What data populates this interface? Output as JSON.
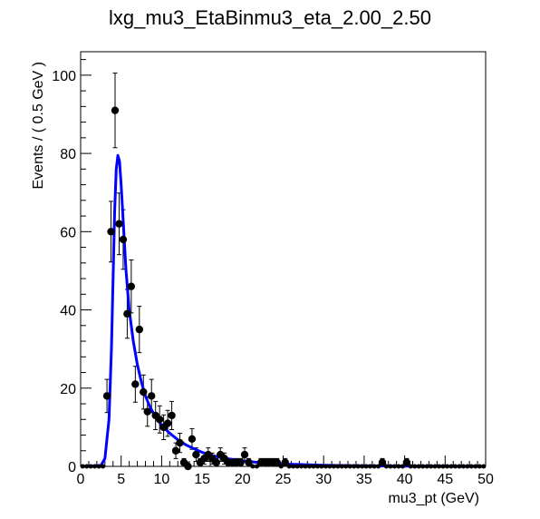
{
  "chart_data": {
    "type": "scatter",
    "title": "lxg_mu3_EtaBinmu3_eta_2.00_2.50",
    "xlabel": "mu3_pt (GeV)",
    "ylabel": "Events / ( 0.5 GeV )",
    "xlim": [
      0,
      50
    ],
    "ylim": [
      0,
      106
    ],
    "x_ticks": [
      "0",
      "5",
      "10",
      "15",
      "20",
      "25",
      "30",
      "35",
      "40",
      "45",
      "50"
    ],
    "y_ticks": [
      "0",
      "20",
      "40",
      "60",
      "80",
      "100"
    ],
    "grid": false,
    "legend": "none",
    "series": [
      {
        "kind": "data",
        "marker": "filled-circle",
        "color": "#000000",
        "error_bars": "poisson",
        "x": [
          3.25,
          3.75,
          4.25,
          4.75,
          5.25,
          5.75,
          6.25,
          6.75,
          7.25,
          7.75,
          8.25,
          8.75,
          9.25,
          9.75,
          10.25,
          10.75,
          11.25,
          11.75,
          12.25,
          12.75,
          13.25,
          13.75,
          14.25,
          14.75,
          15.25,
          15.75,
          16.25,
          16.75,
          17.25,
          17.75,
          18.25,
          18.75,
          19.25,
          19.75,
          20.25,
          20.75,
          22.25,
          22.75,
          23.25,
          23.75,
          24.25,
          25.25,
          37.25,
          40.25
        ],
        "y": [
          18,
          60,
          91,
          62,
          58,
          39,
          46,
          21,
          35,
          19,
          14,
          18,
          13,
          12,
          10,
          11,
          13,
          4,
          6,
          1,
          0,
          7,
          3,
          1,
          2,
          3,
          2,
          1,
          3,
          2,
          1,
          1,
          1,
          1,
          3,
          1,
          1,
          1,
          1,
          1,
          1,
          1,
          1,
          1
        ]
      },
      {
        "kind": "fit",
        "color": "#0000ff",
        "x": [
          0,
          2.5,
          3.0,
          3.5,
          3.8,
          4.0,
          4.2,
          4.4,
          4.6,
          4.8,
          5.0,
          5.3,
          5.6,
          6.0,
          6.5,
          7.0,
          7.5,
          8.0,
          8.5,
          9.0,
          9.5,
          10,
          11,
          12,
          13,
          14,
          15,
          16,
          17,
          18,
          20,
          22,
          25,
          30,
          35,
          40,
          45,
          50
        ],
        "y": [
          0,
          0.2,
          2,
          12,
          30,
          48,
          65,
          76,
          79.5,
          78,
          72,
          61,
          50,
          40,
          32,
          26,
          21.5,
          18,
          15.5,
          13.5,
          12,
          10.5,
          8.5,
          6.8,
          5.5,
          4.5,
          3.6,
          2.9,
          2.4,
          2.0,
          1.4,
          1.0,
          0.6,
          0.3,
          0.15,
          0.08,
          0.04,
          0.02
        ]
      }
    ]
  }
}
